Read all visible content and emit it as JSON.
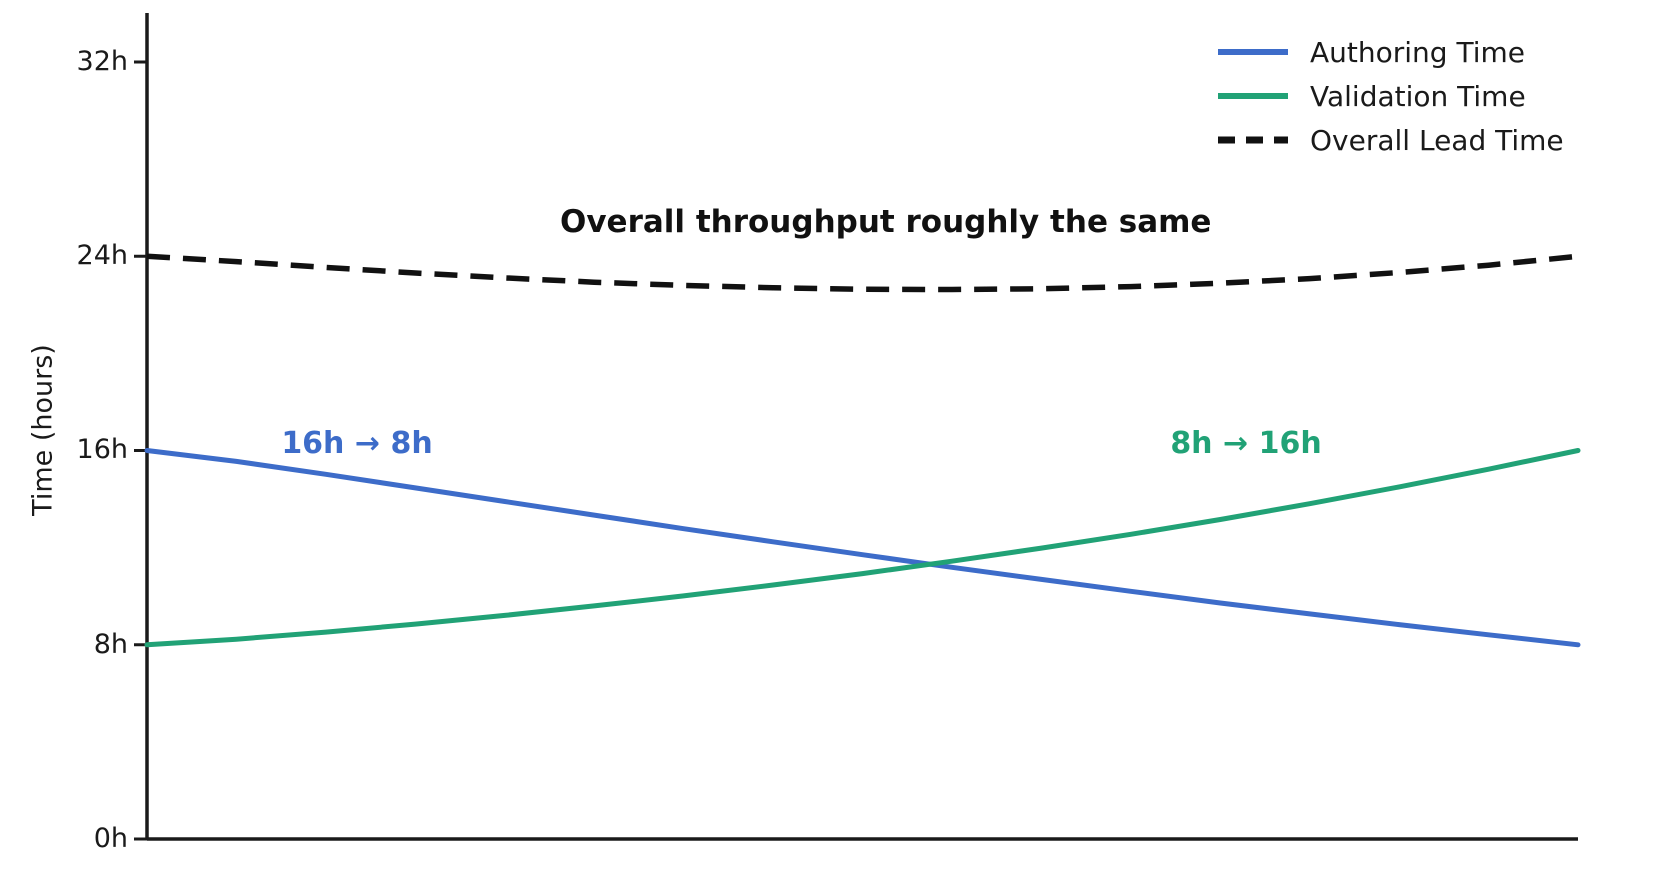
{
  "chart_data": {
    "type": "line",
    "title": "",
    "xlabel": "",
    "ylabel": "Time (hours)",
    "ylim": [
      0,
      32
    ],
    "yticks_hours": [
      0,
      8,
      16,
      24,
      32
    ],
    "ytick_labels": [
      "0h",
      "8h",
      "16h",
      "24h",
      "32h"
    ],
    "x_range": [
      0,
      1
    ],
    "x_tick_labels": "none",
    "grid": false,
    "legend_position": "upper right",
    "x": [
      0,
      0.0625,
      0.125,
      0.1875,
      0.25,
      0.3125,
      0.375,
      0.4375,
      0.5,
      0.5625,
      0.625,
      0.6875,
      0.75,
      0.8125,
      0.875,
      0.9375,
      1
    ],
    "series": [
      {
        "name": "Authoring Time",
        "color": "#3d6cc9",
        "style": "solid",
        "start_value_hours": 16,
        "end_value_hours": 8,
        "values": [
          16,
          15.55,
          15.02,
          14.46,
          13.9,
          13.34,
          12.78,
          12.24,
          11.71,
          11.19,
          10.69,
          10.2,
          9.72,
          9.27,
          8.83,
          8.41,
          8
        ]
      },
      {
        "name": "Validation Time",
        "color": "#21a276",
        "style": "solid",
        "start_value_hours": 8,
        "end_value_hours": 16,
        "values": [
          8,
          8.23,
          8.52,
          8.85,
          9.21,
          9.6,
          10.01,
          10.46,
          10.93,
          11.44,
          11.98,
          12.55,
          13.16,
          13.81,
          14.5,
          15.23,
          16
        ]
      },
      {
        "name": "Overall Lead Time",
        "color": "#111111",
        "style": "dashed",
        "start_value_hours": 24,
        "end_value_hours": 24,
        "values": [
          24,
          23.78,
          23.54,
          23.31,
          23.11,
          22.93,
          22.8,
          22.7,
          22.64,
          22.63,
          22.66,
          22.75,
          22.89,
          23.08,
          23.33,
          23.63,
          24
        ]
      }
    ],
    "annotations": {
      "overall_note": "Overall throughput roughly the same",
      "authoring_note": "16h → 8h",
      "validation_note": "8h → 16h"
    }
  }
}
